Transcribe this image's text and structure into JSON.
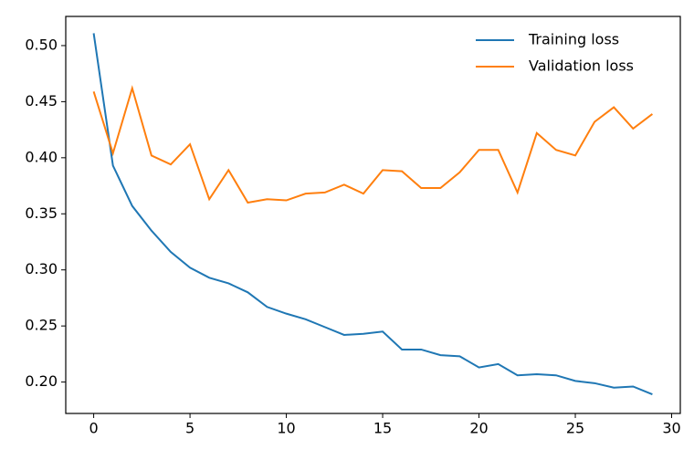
{
  "chart_data": {
    "type": "line",
    "x": [
      0,
      1,
      2,
      3,
      4,
      5,
      6,
      7,
      8,
      9,
      10,
      11,
      12,
      13,
      14,
      15,
      16,
      17,
      18,
      19,
      20,
      21,
      22,
      23,
      24,
      25,
      26,
      27,
      28,
      29
    ],
    "series": [
      {
        "name": "Training loss",
        "color": "#1f77b4",
        "values": [
          0.511,
          0.393,
          0.357,
          0.335,
          0.316,
          0.302,
          0.293,
          0.288,
          0.28,
          0.267,
          0.261,
          0.256,
          0.249,
          0.242,
          0.243,
          0.245,
          0.229,
          0.229,
          0.224,
          0.223,
          0.213,
          0.216,
          0.206,
          0.207,
          0.206,
          0.201,
          0.199,
          0.195,
          0.196,
          0.189
        ]
      },
      {
        "name": "Validation loss",
        "color": "#ff7f0e",
        "values": [
          0.459,
          0.404,
          0.462,
          0.402,
          0.394,
          0.412,
          0.363,
          0.389,
          0.36,
          0.363,
          0.362,
          0.368,
          0.369,
          0.376,
          0.368,
          0.389,
          0.388,
          0.373,
          0.373,
          0.387,
          0.407,
          0.407,
          0.369,
          0.422,
          0.407,
          0.402,
          0.432,
          0.445,
          0.426,
          0.439
        ]
      }
    ],
    "xlim": [
      -1.45,
      30.45
    ],
    "xticks": [
      0,
      5,
      10,
      15,
      20,
      25,
      30
    ],
    "ylim": [
      0.172,
      0.526
    ],
    "yticks": [
      {
        "value": 0.2,
        "label": "0.20"
      },
      {
        "value": 0.25,
        "label": "0.25"
      },
      {
        "value": 0.3,
        "label": "0.30"
      },
      {
        "value": 0.35,
        "label": "0.35"
      },
      {
        "value": 0.4,
        "label": "0.40"
      },
      {
        "value": 0.45,
        "label": "0.45"
      },
      {
        "value": 0.5,
        "label": "0.50"
      }
    ],
    "legend": "upper right"
  }
}
